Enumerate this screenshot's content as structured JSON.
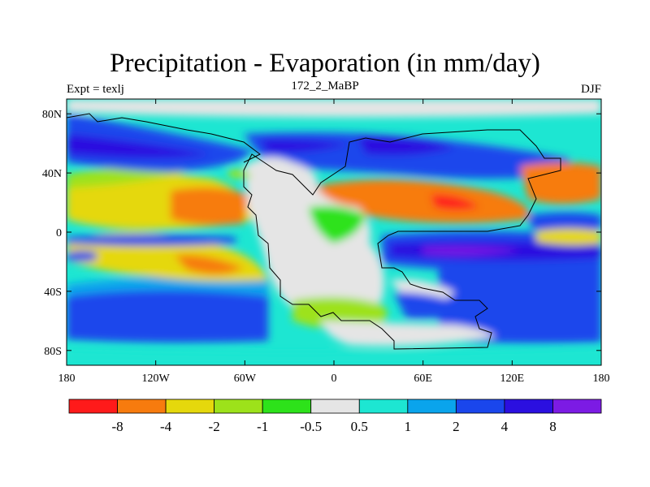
{
  "title": "Precipitation - Evaporation (in mm/day)",
  "left_label": "Expt = texlj",
  "center_label": "172_2_MaBP",
  "right_label": "DJF",
  "map": {
    "x_ticks": [
      {
        "lon": -180,
        "label": "180"
      },
      {
        "lon": -120,
        "label": "120W"
      },
      {
        "lon": -60,
        "label": "60W"
      },
      {
        "lon": 0,
        "label": "0"
      },
      {
        "lon": 60,
        "label": "60E"
      },
      {
        "lon": 120,
        "label": "120E"
      },
      {
        "lon": 180,
        "label": "180"
      }
    ],
    "y_ticks": [
      {
        "lat": 80,
        "label": "80N"
      },
      {
        "lat": 40,
        "label": "40N"
      },
      {
        "lat": 0,
        "label": "0"
      },
      {
        "lat": -40,
        "label": "40S"
      },
      {
        "lat": -80,
        "label": "80S"
      }
    ],
    "lat_range": [
      -90,
      90
    ],
    "lon_range": [
      -180,
      180
    ]
  },
  "colorbar": {
    "colors": [
      "#ff1a1a",
      "#f77b0e",
      "#e5d80c",
      "#9de21a",
      "#2de21a",
      "#e5e5e5",
      "#1de6d2",
      "#0aa4ec",
      "#1a46ec",
      "#2b0fe0",
      "#7c1be4"
    ],
    "labels": [
      "-8",
      "-4",
      "-2",
      "-1",
      "-0.5",
      "0.5",
      "1",
      "2",
      "4",
      "8"
    ]
  }
}
